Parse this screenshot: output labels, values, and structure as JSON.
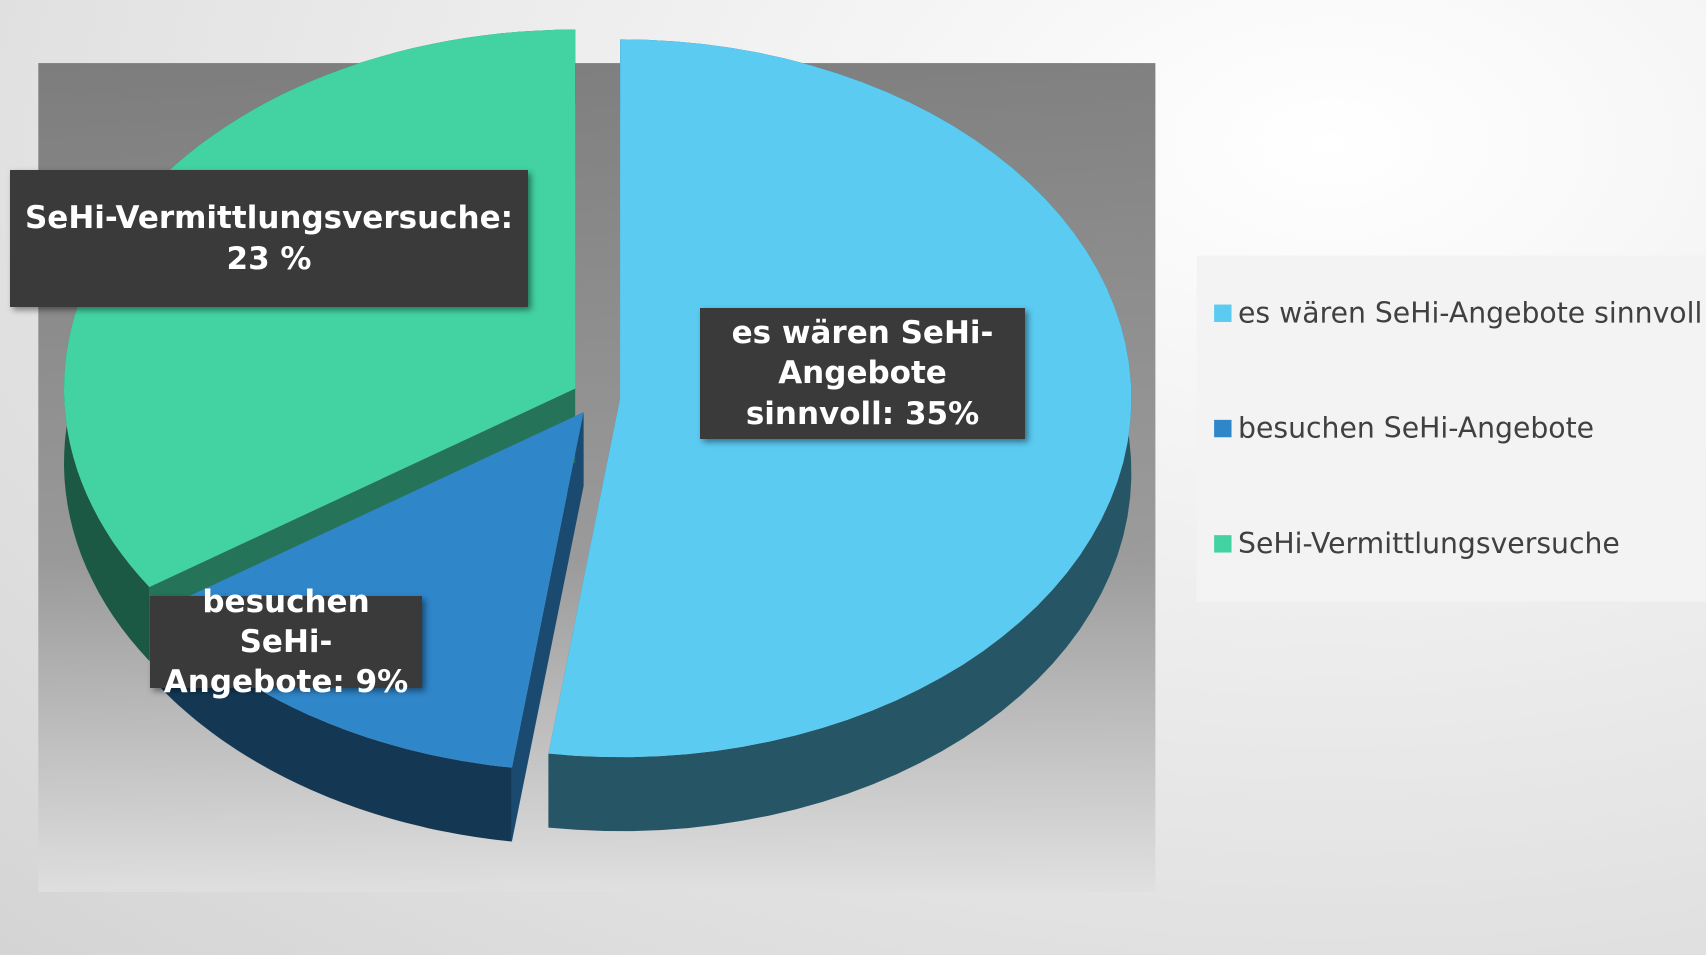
{
  "chart_data": {
    "type": "pie3d",
    "categories": [
      "es wären SeHi-Angebote sinnvoll",
      "besuchen SeHi-Angebote",
      "SeHi-Vermittlungsversuche"
    ],
    "values": [
      35,
      9,
      23
    ],
    "value_labels": [
      "es wären SeHi-Angebote sinnvoll: 35%",
      "besuchen SeHi-Angebote: 9%",
      "SeHi-Vermittlungsversuche: 23 %"
    ],
    "colors": [
      "#5bcbf2",
      "#2f86c9",
      "#43d3a2"
    ],
    "legend": "right"
  }
}
